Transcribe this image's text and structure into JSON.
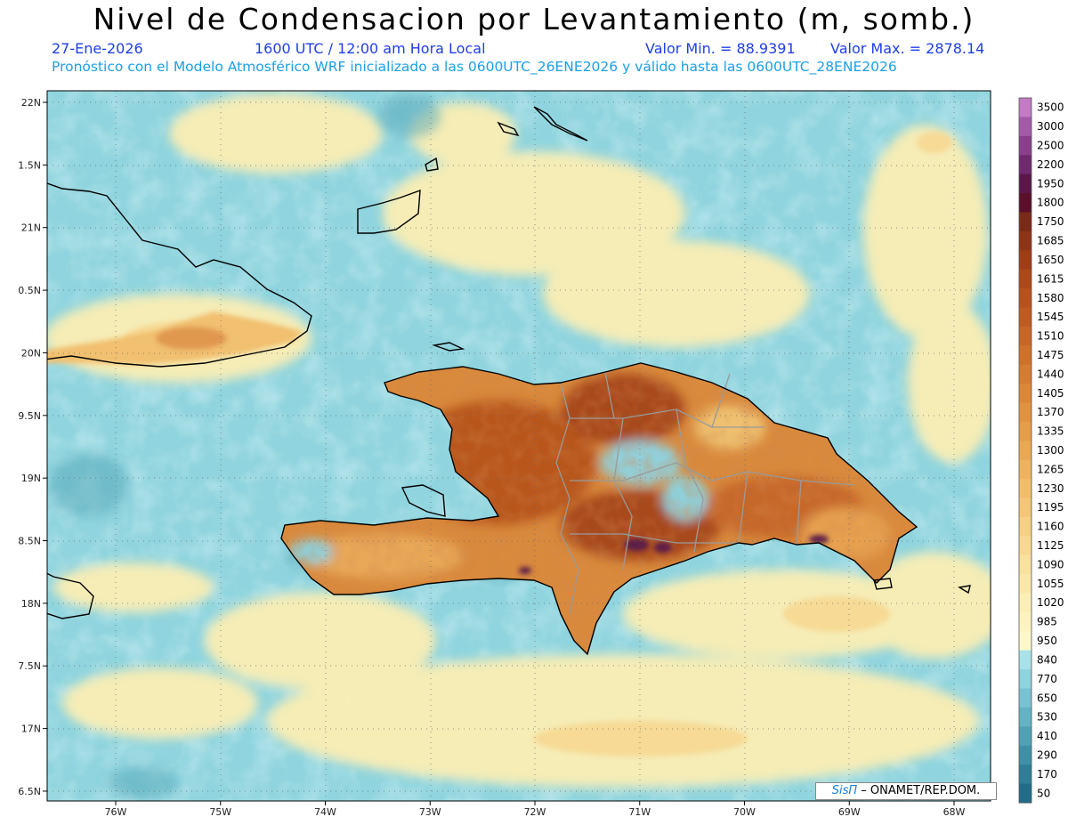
{
  "header": {
    "title": "Nivel de Condensacion por Levantamiento (m, somb.)",
    "date": "27-Ene-2026",
    "time": "1600 UTC / 12:00 am Hora Local",
    "min_label": "Valor Min. = 88.9391",
    "max_label": "Valor Max. = 2878.14",
    "model_line": "Pronóstico con el Modelo Atmosférico WRF inicializado a las 0600UTC_26ENE2026 y válido hasta las  0600UTC_28ENE2026"
  },
  "axes": {
    "lat_labels": [
      "22N",
      "1.5N",
      "21N",
      "0.5N",
      "20N",
      "9.5N",
      "19N",
      "8.5N",
      "18N",
      "7.5N",
      "17N",
      "6.5N"
    ],
    "lon_labels": [
      "76W",
      "75W",
      "74W",
      "73W",
      "72W",
      "71W",
      "70W",
      "69W",
      "68W"
    ]
  },
  "colorbar": {
    "labels": [
      "3500",
      "3000",
      "2500",
      "2200",
      "1950",
      "1800",
      "1750",
      "1685",
      "1650",
      "1615",
      "1580",
      "1545",
      "1510",
      "1475",
      "1440",
      "1405",
      "1370",
      "1335",
      "1300",
      "1265",
      "1230",
      "1195",
      "1160",
      "1125",
      "1090",
      "1055",
      "1020",
      "985",
      "950",
      "840",
      "770",
      "650",
      "530",
      "410",
      "290",
      "170",
      "50"
    ],
    "colors": [
      "#c27bc4",
      "#a35aa8",
      "#8a3f8c",
      "#6f2a6e",
      "#5a1748",
      "#5a0f2a",
      "#7a2a18",
      "#8f3416",
      "#a03d16",
      "#ad4818",
      "#b8521c",
      "#c05b20",
      "#c86625",
      "#d0712a",
      "#d67c30",
      "#dc8737",
      "#e1923f",
      "#e69d48",
      "#eaa852",
      "#eeb35d",
      "#f1bd69",
      "#f4c776",
      "#f6d084",
      "#f8d991",
      "#f9e19e",
      "#fae8aa",
      "#fbeeb6",
      "#fcf3c0",
      "#fdf7ca",
      "#a9e1e8",
      "#8ed3de",
      "#78c3d1",
      "#63b3c4",
      "#50a1b5",
      "#3f90a6",
      "#2f7e97",
      "#216c88"
    ]
  },
  "credit": {
    "logo": "SisΠ",
    "org": "– ONAMET/REP.DOM."
  }
}
